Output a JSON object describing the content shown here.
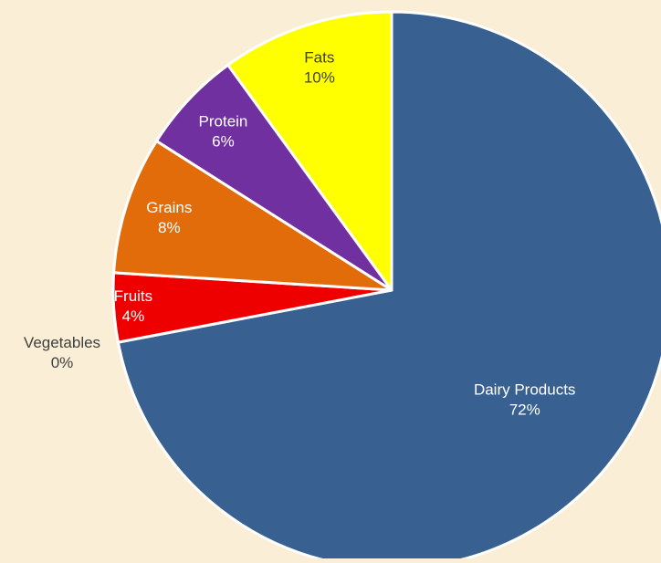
{
  "chart_data": {
    "type": "pie",
    "title": "",
    "start_angle_deg": 0,
    "direction": "clockwise",
    "background_color": "#FAEFD6",
    "slice_border_color": "#FFFFFF",
    "categories": [
      "Dairy Products",
      "Vegetables",
      "Fruits",
      "Grains",
      "Protein",
      "Fats"
    ],
    "values": [
      72,
      0,
      4,
      8,
      6,
      10
    ],
    "value_labels": [
      "72%",
      "0%",
      "4%",
      "8%",
      "6%",
      "10%"
    ],
    "colors": [
      "#386192",
      "#2E8B57",
      "#EE0000",
      "#E36C0A",
      "#7030A0",
      "#FFFF00"
    ],
    "label_colors": [
      "#FFFFFF",
      "#404040",
      "#FFFFFF",
      "#FFFFFF",
      "#FFFFFF",
      "#404040"
    ],
    "legend": "none",
    "data_labels": "category-and-percent"
  }
}
